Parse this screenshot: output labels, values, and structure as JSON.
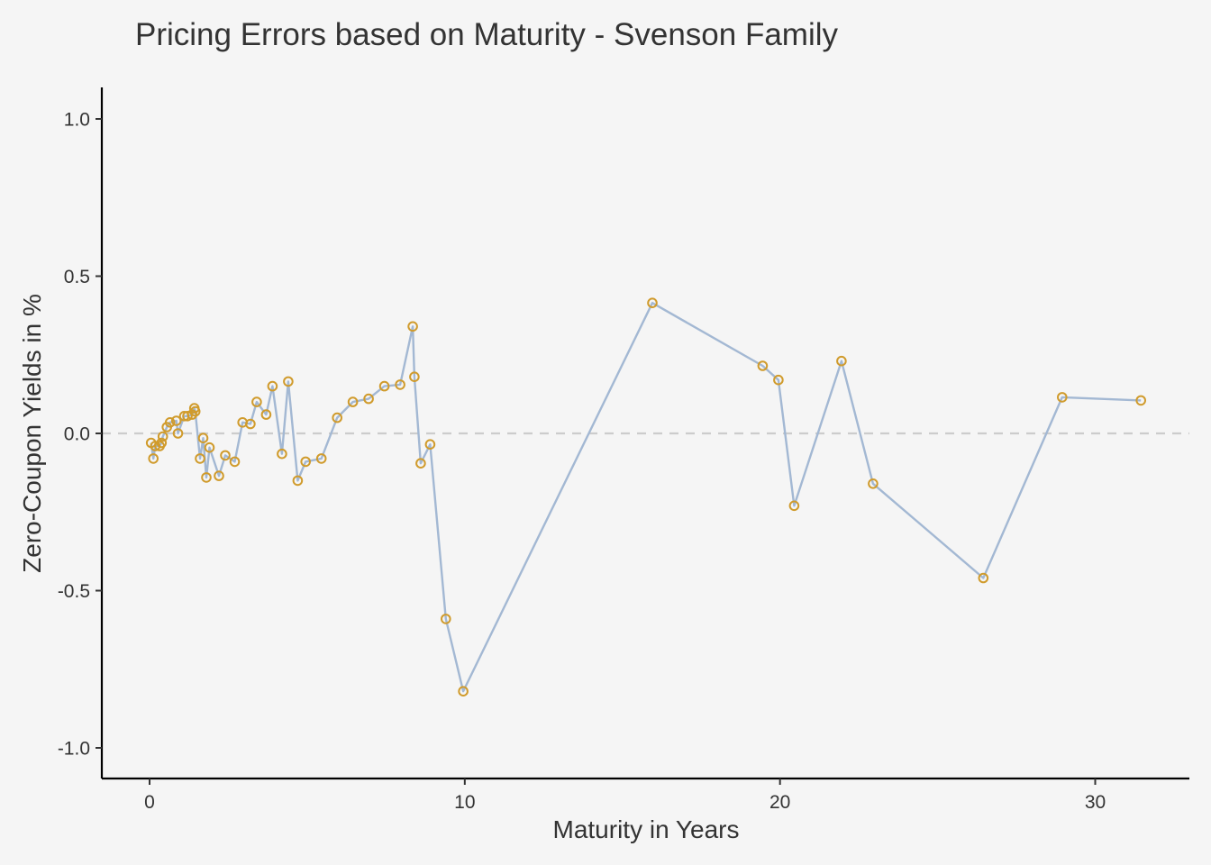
{
  "chart_data": {
    "type": "line",
    "title": "Pricing Errors based on Maturity - Svenson Family",
    "xlabel": "Maturity in Years",
    "ylabel": "Zero-Coupon Yields in %",
    "xlim": [
      -1.5,
      33
    ],
    "ylim": [
      -1.1,
      1.1
    ],
    "xticks": [
      0,
      10,
      20,
      30
    ],
    "xtick_labels": [
      "0",
      "10",
      "20",
      "30"
    ],
    "yticks": [
      -1.0,
      -0.5,
      0.0,
      0.5,
      1.0
    ],
    "ytick_labels": [
      "-1.0",
      "-0.5",
      "0.0",
      "0.5",
      "1.0"
    ],
    "reference_line": {
      "y": 0,
      "style": "dashed",
      "color": "#cccccc"
    },
    "grid": false,
    "colors": {
      "line": "#a3b8d3",
      "points": "#d09b2c",
      "background": "#f5f5f5"
    },
    "series": [
      {
        "x": [
          0.05,
          0.12,
          0.18,
          0.32,
          0.38,
          0.42,
          0.55,
          0.65,
          0.85,
          0.9,
          1.1,
          1.2,
          1.35,
          1.42,
          1.45,
          1.6,
          1.7,
          1.8,
          1.9,
          2.2,
          2.4,
          2.7,
          2.95,
          3.2,
          3.4,
          3.7,
          3.9,
          4.2,
          4.4,
          4.7,
          4.95,
          5.45,
          5.95,
          6.45,
          6.95,
          7.45,
          7.95,
          8.35,
          8.4,
          8.6,
          8.9,
          9.4,
          9.95,
          15.95,
          19.45,
          19.95,
          20.45,
          21.95,
          22.95,
          26.45,
          28.95,
          31.45
        ],
        "y": [
          -0.03,
          -0.08,
          -0.04,
          -0.04,
          -0.03,
          -0.01,
          0.02,
          0.035,
          0.04,
          0.0,
          0.055,
          0.055,
          0.06,
          0.08,
          0.07,
          -0.08,
          -0.015,
          -0.14,
          -0.045,
          -0.135,
          -0.07,
          -0.09,
          0.035,
          0.03,
          0.1,
          0.06,
          0.15,
          -0.065,
          0.165,
          -0.15,
          -0.09,
          -0.08,
          0.05,
          0.1,
          0.11,
          0.15,
          0.155,
          0.34,
          0.18,
          -0.095,
          -0.035,
          -0.59,
          -0.82,
          0.415,
          0.215,
          0.17,
          -0.23,
          0.23,
          -0.16,
          -0.46,
          0.115,
          0.105
        ]
      }
    ]
  }
}
